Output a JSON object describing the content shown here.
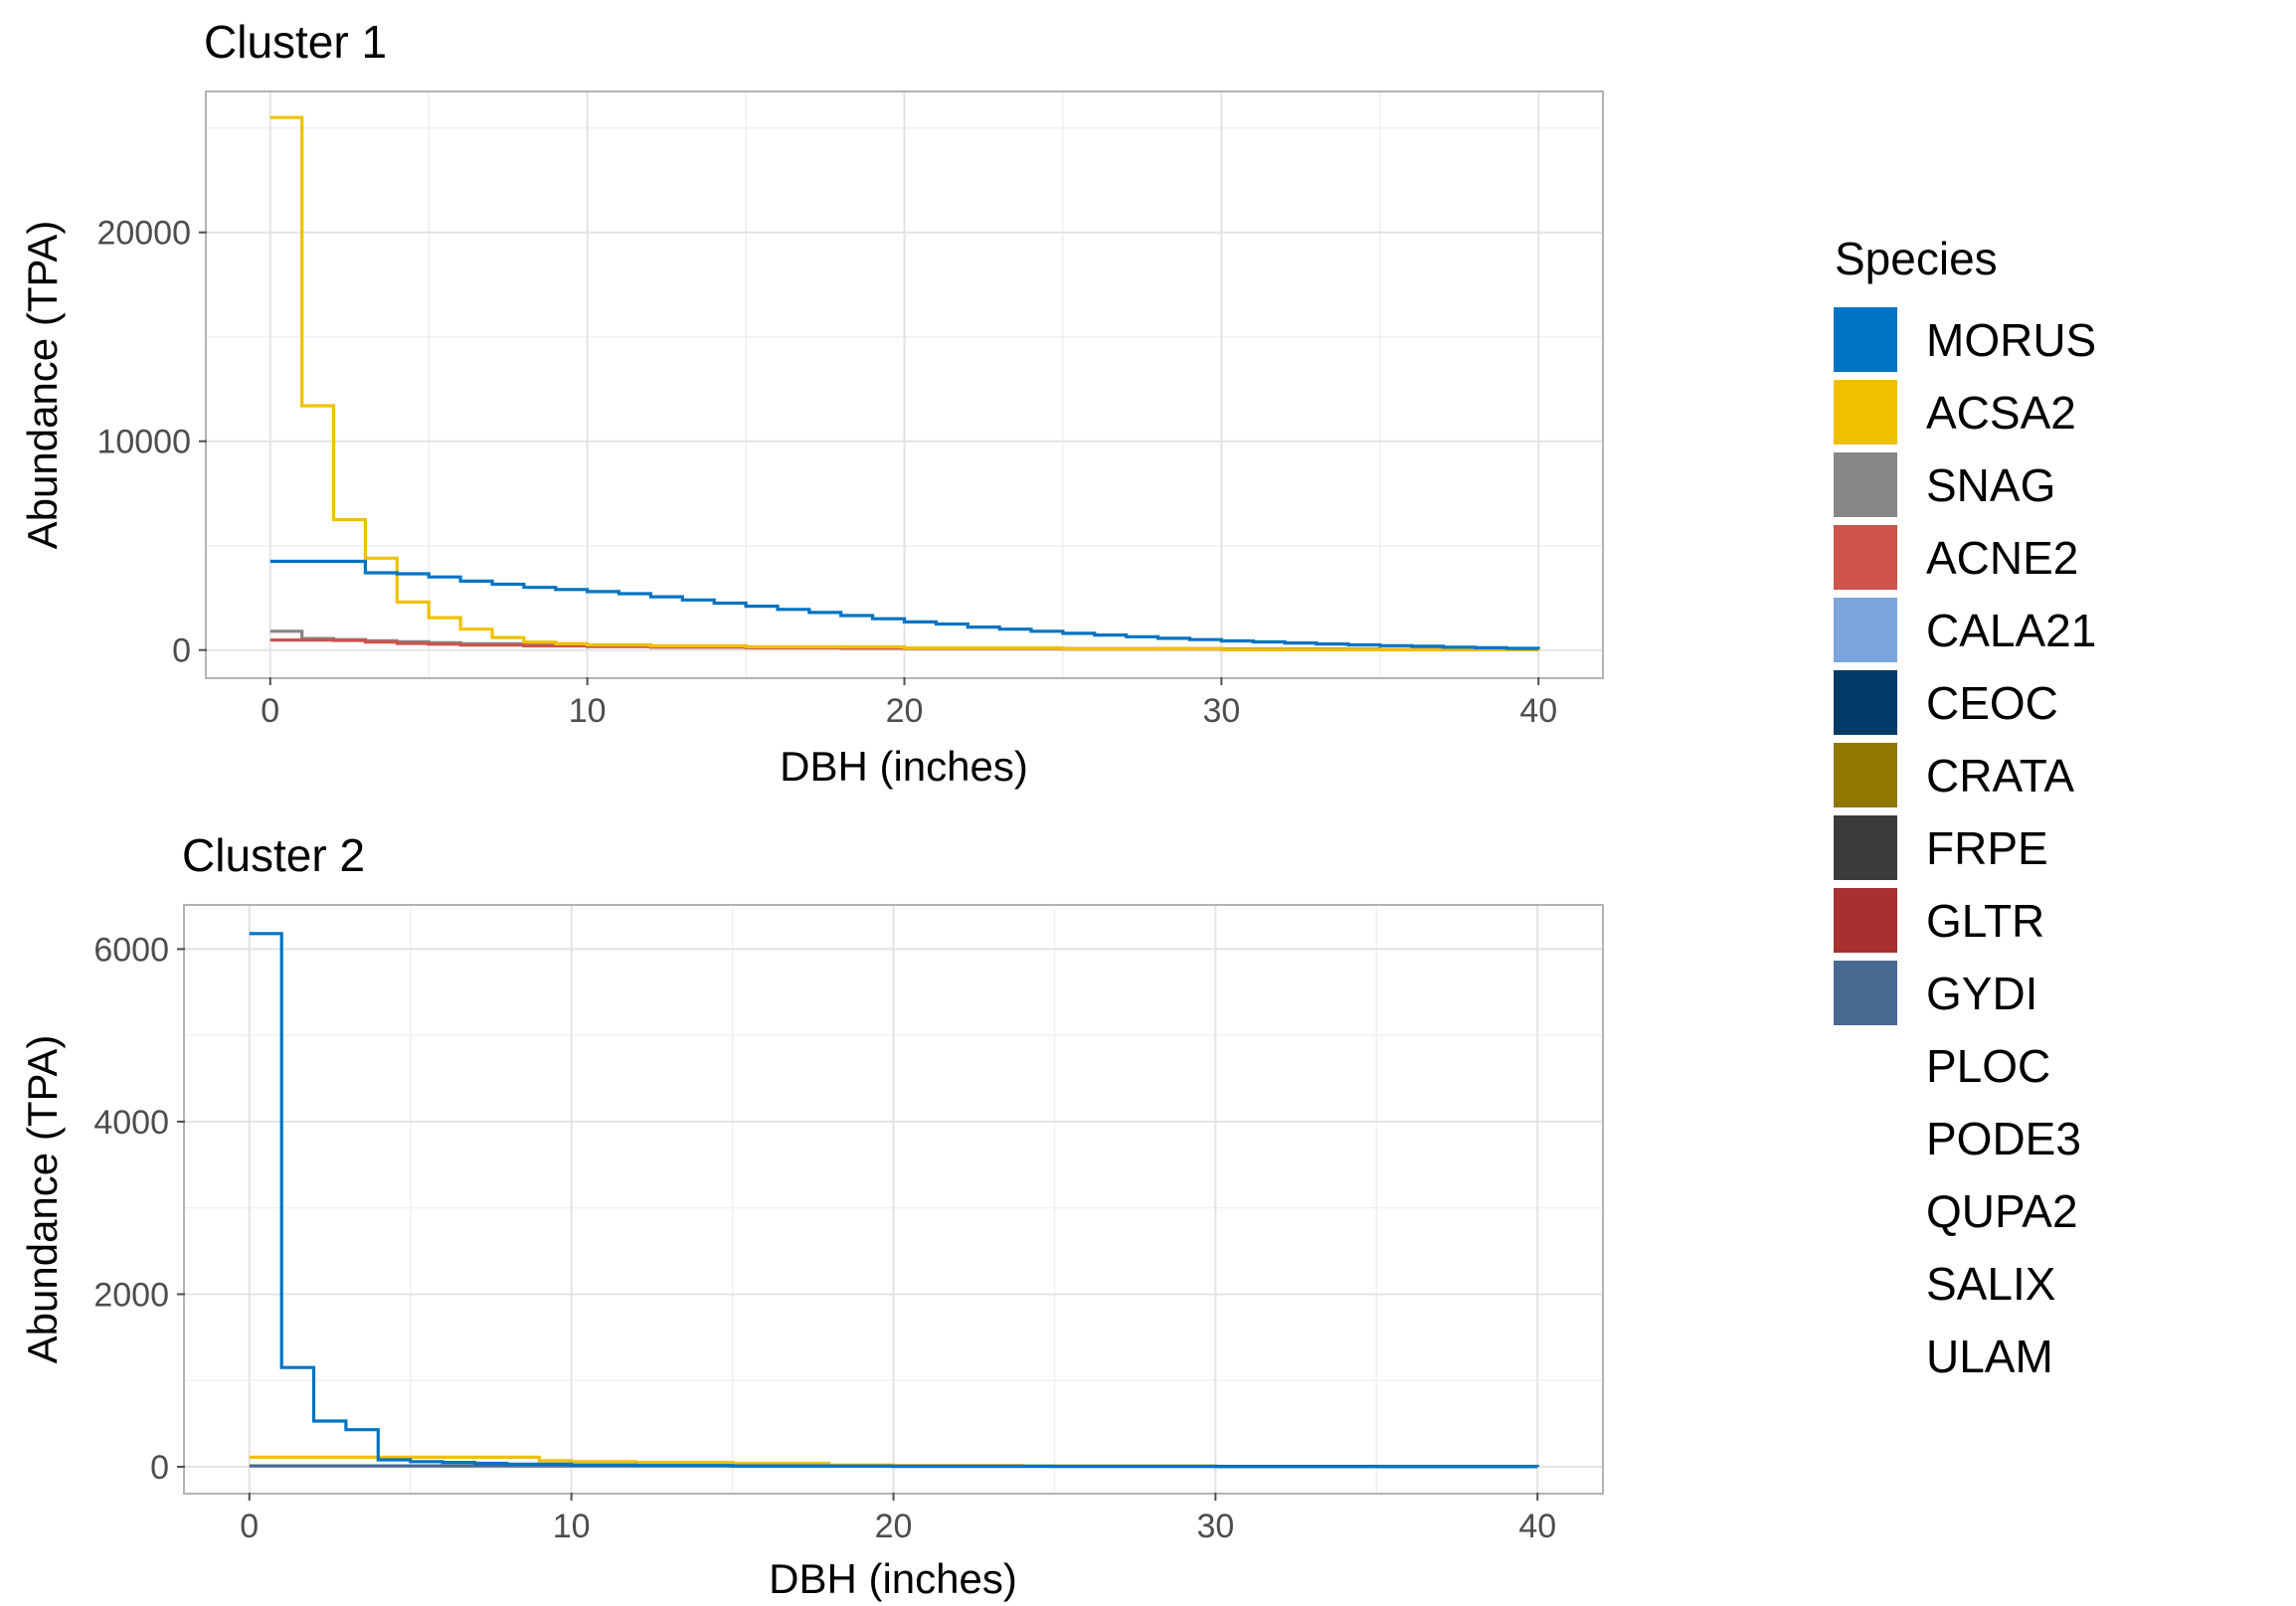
{
  "legend": {
    "title": "Species",
    "items": [
      {
        "name": "MORUS",
        "color": "#0073C2"
      },
      {
        "name": "ACSA2",
        "color": "#EFC000"
      },
      {
        "name": "SNAG",
        "color": "#868686"
      },
      {
        "name": "ACNE2",
        "color": "#CD534C"
      },
      {
        "name": "CALA21",
        "color": "#7AA6DC"
      },
      {
        "name": "CEOC",
        "color": "#003C67"
      },
      {
        "name": "CRATA",
        "color": "#8F7700"
      },
      {
        "name": "FRPE",
        "color": "#3B3B3B"
      },
      {
        "name": "GLTR",
        "color": "#A73030"
      },
      {
        "name": "GYDI",
        "color": "#4A6990"
      },
      {
        "name": "PLOC",
        "color": ""
      },
      {
        "name": "PODE3",
        "color": ""
      },
      {
        "name": "QUPA2",
        "color": ""
      },
      {
        "name": "SALIX",
        "color": ""
      },
      {
        "name": "ULAM",
        "color": ""
      }
    ]
  },
  "chart_data": [
    {
      "type": "line",
      "step": true,
      "title": "Cluster 1",
      "xlabel": "DBH (inches)",
      "ylabel": "Abundance (TPA)",
      "xlim": [
        -2,
        42
      ],
      "ylim": [
        -1300,
        26700
      ],
      "xticks": [
        0,
        10,
        20,
        30,
        40
      ],
      "xtick_labels": [
        "0",
        "10",
        "20",
        "30",
        "40"
      ],
      "yticks": [
        0,
        10000,
        20000
      ],
      "ytick_labels": [
        "0",
        "10000",
        "20000"
      ],
      "grid": true,
      "series": [
        {
          "name": "SNAG",
          "x": [
            0,
            1,
            2,
            3,
            4,
            5,
            6,
            8,
            10,
            12,
            15,
            18,
            20,
            25,
            30,
            35,
            40
          ],
          "y": [
            900,
            550,
            500,
            450,
            400,
            350,
            300,
            260,
            220,
            190,
            150,
            120,
            100,
            70,
            50,
            30,
            10
          ]
        },
        {
          "name": "ACNE2",
          "x": [
            0,
            1,
            2,
            3,
            4,
            5,
            6,
            8,
            10,
            12,
            15,
            18,
            20,
            25,
            30,
            35,
            40
          ],
          "y": [
            480,
            480,
            460,
            380,
            320,
            280,
            240,
            200,
            170,
            140,
            110,
            90,
            70,
            50,
            30,
            20,
            10
          ]
        },
        {
          "name": "ACSA2",
          "x": [
            0,
            1,
            2,
            3,
            4,
            5,
            6,
            7,
            8,
            9,
            10,
            12,
            15,
            20,
            25,
            30,
            35,
            40
          ],
          "y": [
            25500,
            11700,
            6250,
            4400,
            2300,
            1550,
            1000,
            600,
            380,
            300,
            250,
            200,
            150,
            100,
            60,
            30,
            20,
            10
          ]
        },
        {
          "name": "MORUS",
          "x": [
            0,
            1,
            2,
            3,
            4,
            5,
            6,
            7,
            8,
            9,
            10,
            11,
            12,
            13,
            14,
            15,
            16,
            17,
            18,
            19,
            20,
            21,
            22,
            23,
            24,
            25,
            26,
            27,
            28,
            29,
            30,
            31,
            32,
            33,
            34,
            35,
            36,
            37,
            38,
            39,
            40
          ],
          "y": [
            4250,
            4250,
            4250,
            3700,
            3650,
            3500,
            3300,
            3150,
            3000,
            2900,
            2800,
            2700,
            2550,
            2400,
            2250,
            2100,
            1950,
            1800,
            1650,
            1500,
            1350,
            1250,
            1100,
            1000,
            900,
            800,
            720,
            640,
            560,
            500,
            440,
            390,
            340,
            290,
            250,
            210,
            180,
            140,
            110,
            80,
            60
          ]
        }
      ]
    },
    {
      "type": "line",
      "step": true,
      "title": "Cluster 2",
      "xlabel": "DBH (inches)",
      "ylabel": "Abundance (TPA)",
      "xlim": [
        -2,
        42
      ],
      "ylim": [
        -300,
        6500
      ],
      "xticks": [
        0,
        10,
        20,
        30,
        40
      ],
      "xtick_labels": [
        "0",
        "10",
        "20",
        "30",
        "40"
      ],
      "yticks": [
        0,
        2000,
        4000,
        6000
      ],
      "ytick_labels": [
        "0",
        "2000",
        "4000",
        "6000"
      ],
      "grid": true,
      "series": [
        {
          "name": "ACSA2",
          "x": [
            0,
            1,
            2,
            3,
            4,
            5,
            6,
            7,
            8,
            9,
            10,
            12,
            15,
            18,
            20,
            24,
            30,
            40
          ],
          "y": [
            110,
            110,
            110,
            110,
            110,
            110,
            110,
            110,
            110,
            70,
            60,
            50,
            40,
            20,
            15,
            10,
            5,
            0
          ]
        },
        {
          "name": "GYDI",
          "x": [
            0,
            5,
            10,
            15,
            20,
            25,
            30,
            35,
            40
          ],
          "y": [
            10,
            10,
            10,
            8,
            6,
            5,
            4,
            3,
            2
          ]
        },
        {
          "name": "MORUS",
          "x": [
            0,
            1,
            2,
            3,
            4,
            5,
            6,
            7,
            8,
            10,
            12,
            15,
            18,
            20,
            25,
            30,
            35,
            40
          ],
          "y": [
            6180,
            1150,
            530,
            430,
            80,
            60,
            50,
            40,
            30,
            20,
            15,
            10,
            8,
            5,
            3,
            2,
            1,
            0
          ]
        }
      ]
    }
  ]
}
